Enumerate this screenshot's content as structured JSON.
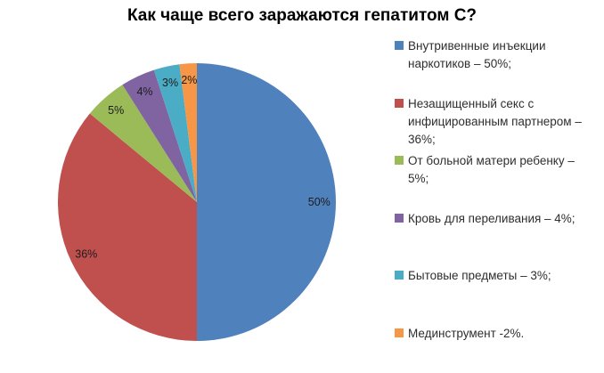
{
  "chart_data": {
    "type": "pie",
    "title": "Как чаще всего заражаются гепатитом С?",
    "legend_position": "right",
    "background": "#FFFFFF",
    "start_angle_deg": -90,
    "direction": "clockwise",
    "total": 100,
    "series": [
      {
        "name": "Внутривенные инъекции наркотиков",
        "value": 50,
        "percent_label": "50%",
        "color": "#4F81BD",
        "legend_label": "Внутривенные инъекции наркотиков – 50%;"
      },
      {
        "name": "Незащищенный секс с инфицированным партнером",
        "value": 36,
        "percent_label": "36%",
        "color": "#C0504D",
        "legend_label": "Незащищенный секс с инфицированным партнером – 36%;"
      },
      {
        "name": "От больной матери ребенку",
        "value": 5,
        "percent_label": "5%",
        "color": "#9BBB59",
        "legend_label": "От больной матери ребенку – 5%;"
      },
      {
        "name": "Кровь для переливания",
        "value": 4,
        "percent_label": "4%",
        "color": "#8064A2",
        "legend_label": "Кровь для переливания – 4%;"
      },
      {
        "name": "Бытовые предметы",
        "value": 3,
        "percent_label": "3%",
        "color": "#4BACC6",
        "legend_label": "Бытовые предметы – 3%;"
      },
      {
        "name": "Мединструмент",
        "value": 2,
        "percent_label": "2%",
        "color": "#F79646",
        "legend_label": "Мединструмент -2%."
      }
    ]
  }
}
